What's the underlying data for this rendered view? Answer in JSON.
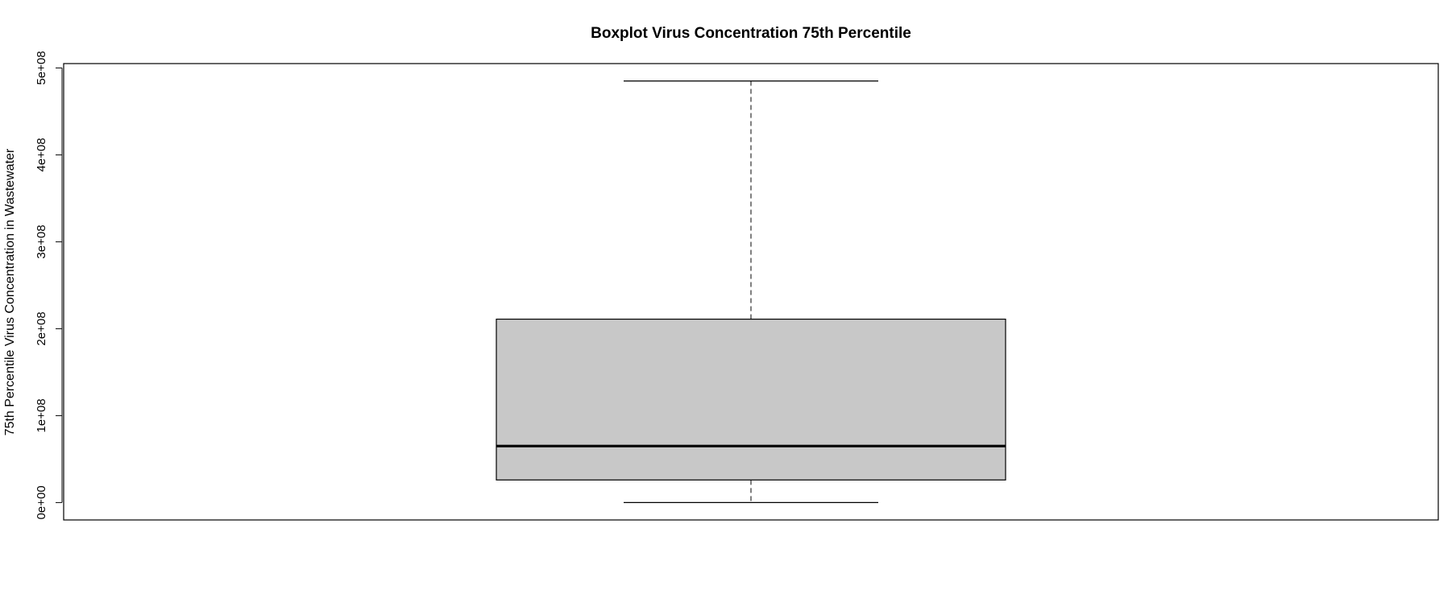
{
  "chart_data": {
    "type": "boxplot",
    "title": "Boxplot Virus Concentration 75th Percentile",
    "xlabel": "",
    "ylabel": "75th Percentile Virus Concentration in Wastewater",
    "ylim": [
      -20000000,
      505000000
    ],
    "yticks": [
      0,
      100000000,
      200000000,
      300000000,
      400000000,
      500000000
    ],
    "ytick_labels": [
      "0e+00",
      "1e+08",
      "2e+08",
      "3e+08",
      "4e+08",
      "5e+08"
    ],
    "grid": false,
    "box": {
      "whisker_low": 0,
      "q1": 26000000,
      "median": 65000000,
      "q3": 211000000,
      "whisker_high": 485000000
    },
    "colors": {
      "box_fill": "#c8c8c8",
      "stroke": "#000000"
    }
  }
}
